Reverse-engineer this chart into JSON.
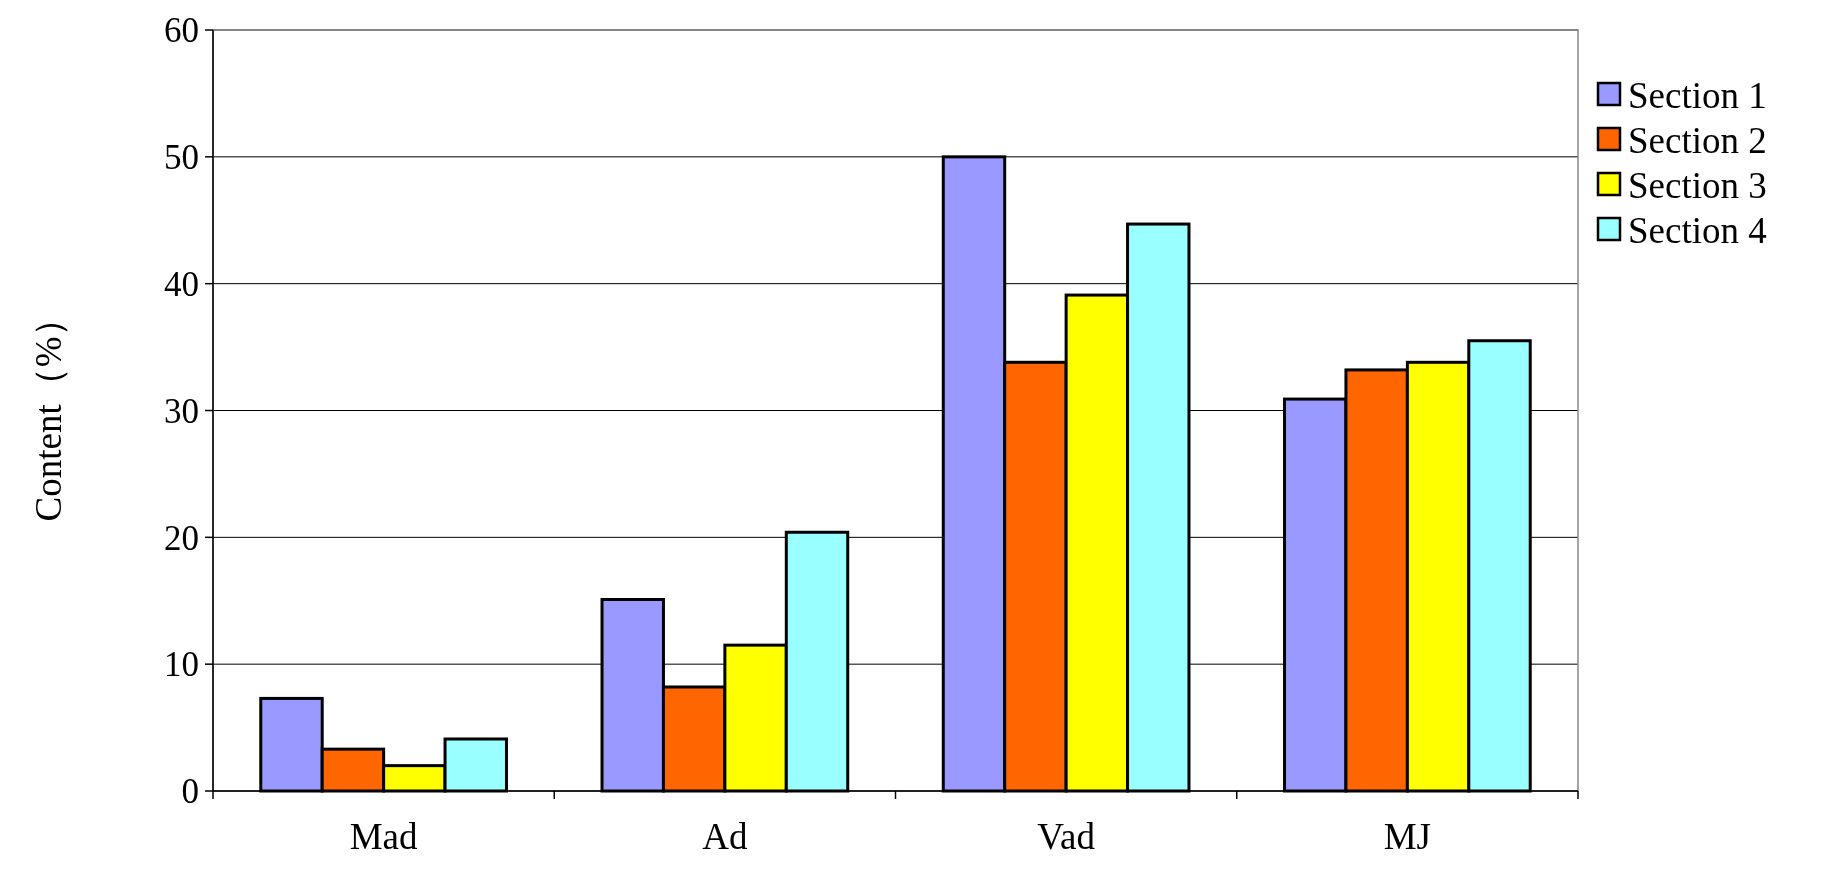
{
  "chart_data": {
    "type": "bar",
    "ylabel": "Content（%）",
    "categories": [
      "Mad",
      "Ad",
      "Vad",
      "MJ"
    ],
    "series": [
      {
        "name": "Section 1",
        "color": "#9999ff",
        "values": [
          7.3,
          15.1,
          50.0,
          30.9
        ]
      },
      {
        "name": "Section 2",
        "color": "#ff6600",
        "values": [
          3.3,
          8.2,
          33.8,
          33.2
        ]
      },
      {
        "name": "Section 3",
        "color": "#ffff00",
        "values": [
          2.0,
          11.5,
          39.1,
          33.8
        ]
      },
      {
        "name": "Section 4",
        "color": "#99ffff",
        "values": [
          4.1,
          20.4,
          44.7,
          35.5
        ]
      }
    ],
    "ylim": [
      0,
      60
    ],
    "yticks": [
      0,
      10,
      20,
      30,
      40,
      50,
      60
    ],
    "grid": "y",
    "legend": "right"
  }
}
